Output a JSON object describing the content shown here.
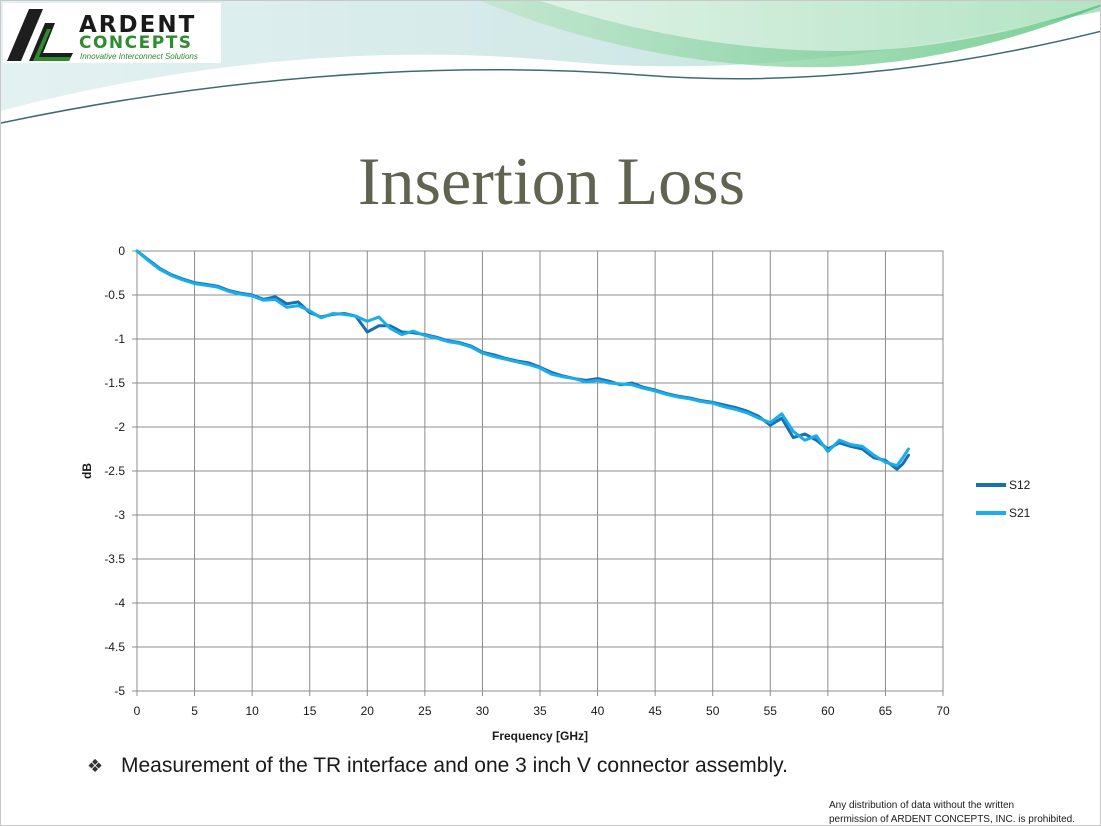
{
  "logo": {
    "name": "ARDENT",
    "sub": "CONCEPTS",
    "tagline": "Innovative Interconnect Solutions",
    "colors": {
      "mark": "#1e1e1e",
      "accent": "#2e8b2e"
    }
  },
  "slide": {
    "title": "Insertion Loss",
    "bullet_symbol": "❖",
    "bullet": "Measurement of the TR interface and one 3 inch V connector assembly.",
    "footer_line1": "Any distribution of data without the written",
    "footer_line2": "permission of ARDENT CONCEPTS, INC. is prohibited."
  },
  "chart_data": {
    "type": "line",
    "title": "",
    "xlabel": "Frequency [GHz]",
    "ylabel": "dB",
    "xlim": [
      0,
      70
    ],
    "ylim": [
      -5,
      0
    ],
    "xticks": [
      0,
      5,
      10,
      15,
      20,
      25,
      30,
      35,
      40,
      45,
      50,
      55,
      60,
      65,
      70
    ],
    "yticks": [
      0,
      -0.5,
      -1,
      -1.5,
      -2,
      -2.5,
      -3,
      -3.5,
      -4,
      -4.5,
      -5
    ],
    "grid": true,
    "legend_position": "right",
    "series": [
      {
        "name": "S12",
        "color": "#1a6fb0",
        "x": [
          0,
          1,
          2,
          3,
          4,
          5,
          6,
          7,
          8,
          9,
          10,
          11,
          12,
          13,
          14,
          15,
          16,
          17,
          18,
          19,
          20,
          21,
          22,
          23,
          24,
          25,
          26,
          27,
          28,
          29,
          30,
          31,
          32,
          33,
          34,
          35,
          36,
          37,
          38,
          39,
          40,
          41,
          42,
          43,
          44,
          45,
          46,
          47,
          48,
          49,
          50,
          51,
          52,
          53,
          54,
          55,
          56,
          57,
          58,
          59,
          60,
          61,
          62,
          63,
          64,
          65,
          66,
          66.5,
          67
        ],
        "y": [
          0,
          -0.1,
          -0.2,
          -0.27,
          -0.32,
          -0.36,
          -0.38,
          -0.4,
          -0.45,
          -0.48,
          -0.5,
          -0.55,
          -0.52,
          -0.6,
          -0.58,
          -0.7,
          -0.75,
          -0.72,
          -0.71,
          -0.74,
          -0.92,
          -0.85,
          -0.85,
          -0.92,
          -0.93,
          -0.95,
          -0.98,
          -1.02,
          -1.04,
          -1.08,
          -1.15,
          -1.18,
          -1.22,
          -1.25,
          -1.27,
          -1.32,
          -1.38,
          -1.42,
          -1.45,
          -1.47,
          -1.45,
          -1.48,
          -1.52,
          -1.5,
          -1.55,
          -1.58,
          -1.62,
          -1.65,
          -1.67,
          -1.7,
          -1.72,
          -1.75,
          -1.78,
          -1.82,
          -1.88,
          -1.98,
          -1.9,
          -2.12,
          -2.08,
          -2.15,
          -2.25,
          -2.18,
          -2.22,
          -2.25,
          -2.35,
          -2.38,
          -2.48,
          -2.42,
          -2.32
        ]
      },
      {
        "name": "S21",
        "color": "#19aeea",
        "x": [
          0,
          1,
          2,
          3,
          4,
          5,
          6,
          7,
          8,
          9,
          10,
          11,
          12,
          13,
          14,
          15,
          16,
          17,
          18,
          19,
          20,
          21,
          22,
          23,
          24,
          25,
          26,
          27,
          28,
          29,
          30,
          31,
          32,
          33,
          34,
          35,
          36,
          37,
          38,
          39,
          40,
          41,
          42,
          43,
          44,
          45,
          46,
          47,
          48,
          49,
          50,
          51,
          52,
          53,
          54,
          55,
          56,
          57,
          58,
          59,
          60,
          61,
          62,
          63,
          64,
          65,
          66,
          66.5,
          67
        ],
        "y": [
          0,
          -0.11,
          -0.21,
          -0.28,
          -0.33,
          -0.37,
          -0.39,
          -0.41,
          -0.46,
          -0.49,
          -0.51,
          -0.56,
          -0.55,
          -0.64,
          -0.62,
          -0.68,
          -0.76,
          -0.71,
          -0.72,
          -0.74,
          -0.8,
          -0.75,
          -0.88,
          -0.95,
          -0.91,
          -0.96,
          -0.99,
          -1.03,
          -1.05,
          -1.09,
          -1.16,
          -1.2,
          -1.23,
          -1.26,
          -1.29,
          -1.33,
          -1.4,
          -1.43,
          -1.45,
          -1.49,
          -1.47,
          -1.5,
          -1.51,
          -1.52,
          -1.56,
          -1.59,
          -1.63,
          -1.66,
          -1.68,
          -1.71,
          -1.73,
          -1.77,
          -1.8,
          -1.84,
          -1.9,
          -1.95,
          -1.85,
          -2.05,
          -2.15,
          -2.1,
          -2.28,
          -2.15,
          -2.2,
          -2.22,
          -2.32,
          -2.4,
          -2.44,
          -2.35,
          -2.25
        ]
      }
    ]
  }
}
